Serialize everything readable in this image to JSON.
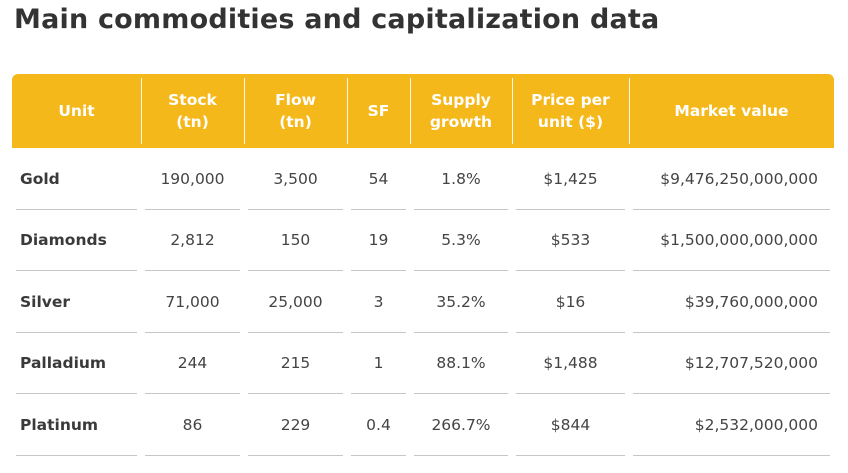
{
  "chart_data": {
    "type": "table",
    "title": "Main commodities and capitalization data",
    "columns": [
      "Unit",
      "Stock\n(tn)",
      "Flow\n(tn)",
      "SF",
      "Supply\ngrowth",
      "Price per\nunit ($)",
      "Market value"
    ],
    "rows": [
      [
        "Gold",
        "190,000",
        "3,500",
        "54",
        "1.8%",
        "$1,425",
        "$9,476,250,000,000"
      ],
      [
        "Diamonds",
        "2,812",
        "150",
        "19",
        "5.3%",
        "$533",
        "$1,500,000,000,000"
      ],
      [
        "Silver",
        "71,000",
        "25,000",
        "3",
        "35.2%",
        "$16",
        "$39,760,000,000"
      ],
      [
        "Palladium",
        "244",
        "215",
        "1",
        "88.1%",
        "$1,488",
        "$12,707,520,000"
      ],
      [
        "Platinum",
        "86",
        "229",
        "0.4",
        "266.7%",
        "$844",
        "$2,532,000,000"
      ]
    ]
  },
  "colors": {
    "header_background": "#f5b81a",
    "header_text": "#ffffff",
    "row_divider": "#c6c6c6"
  }
}
